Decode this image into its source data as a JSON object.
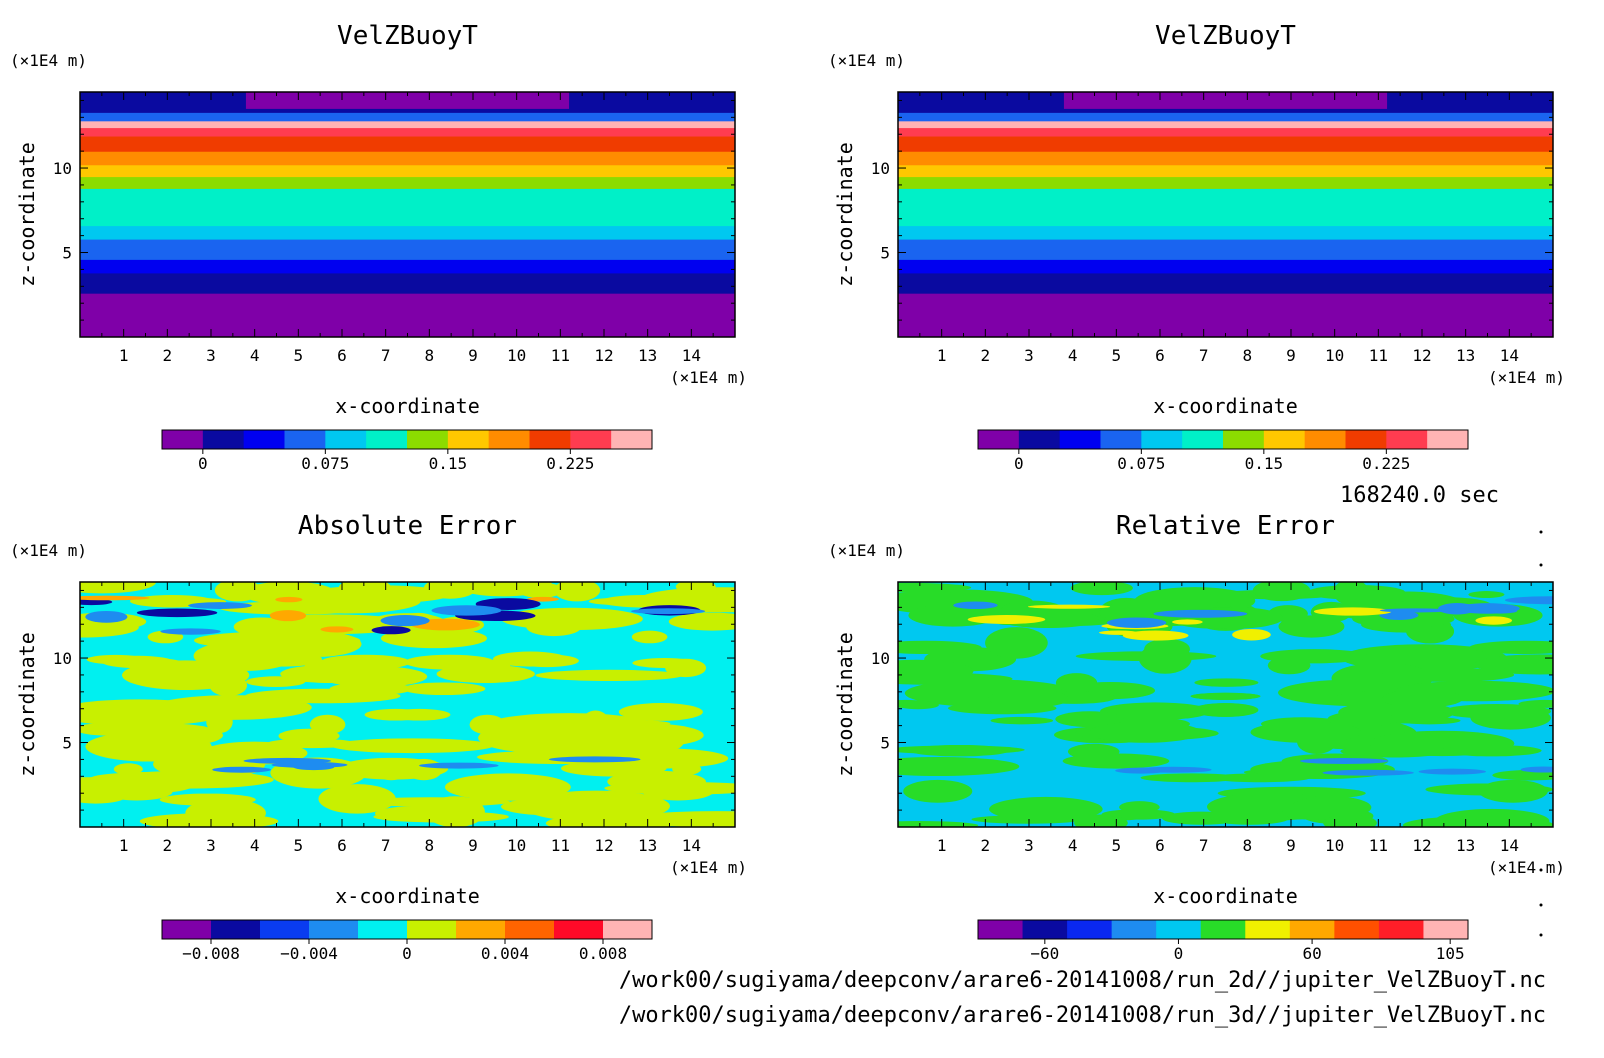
{
  "timestamp": "168240.0 sec",
  "files": [
    "/work00/sugiyama/deepconv/arare6-20141008/run_2d//jupiter_VelZBuoyT.nc",
    "/work00/sugiyama/deepconv/arare6-20141008/run_3d//jupiter_VelZBuoyT.nc"
  ],
  "chart_data": [
    {
      "type": "heatmap",
      "title": "VelZBuoyT",
      "xlabel": "x-coordinate",
      "ylabel": "z-coordinate",
      "x_unit": "(×1E4 m)",
      "y_unit": "(×1E4 m)",
      "x_ticks": [
        1,
        2,
        3,
        4,
        5,
        6,
        7,
        8,
        9,
        10,
        11,
        12,
        13,
        14
      ],
      "y_ticks": [
        5,
        10
      ],
      "xlim": [
        0,
        15
      ],
      "ylim": [
        0,
        14.5
      ],
      "pattern": "horizontal-bands",
      "bands": [
        {
          "z": [
            0,
            2.6
          ],
          "level": 0
        },
        {
          "z": [
            2.6,
            3.8
          ],
          "level": 1
        },
        {
          "z": [
            3.8,
            4.6
          ],
          "level": 2
        },
        {
          "z": [
            4.6,
            5.8
          ],
          "level": 3
        },
        {
          "z": [
            5.8,
            6.6
          ],
          "level": 4
        },
        {
          "z": [
            6.6,
            8.8
          ],
          "level": 5
        },
        {
          "z": [
            8.8,
            9.5
          ],
          "level": 6
        },
        {
          "z": [
            9.5,
            10.2
          ],
          "level": 7
        },
        {
          "z": [
            10.2,
            11.0
          ],
          "level": 8
        },
        {
          "z": [
            11.0,
            11.9
          ],
          "level": 9
        },
        {
          "z": [
            11.9,
            12.4
          ],
          "level": 10
        },
        {
          "z": [
            12.4,
            12.8
          ],
          "level": 11
        },
        {
          "z": [
            12.8,
            13.3
          ],
          "level": 3
        },
        {
          "z": [
            13.3,
            14.5
          ],
          "level": 1
        }
      ],
      "colorbar": {
        "colors": [
          "#7f00a8",
          "#0a0aa0",
          "#0000f0",
          "#1a64f0",
          "#00c8f0",
          "#00f0c8",
          "#8cdc00",
          "#ffc800",
          "#ff8c00",
          "#f03c00",
          "#ff3c50",
          "#ffb4b4"
        ],
        "tick_labels": [
          "0",
          "0.075",
          "0.15",
          "0.225"
        ],
        "tick_at_boundary": [
          1,
          4,
          7,
          10
        ]
      }
    },
    {
      "type": "heatmap",
      "title": "VelZBuoyT",
      "xlabel": "x-coordinate",
      "ylabel": "z-coordinate",
      "x_unit": "(×1E4 m)",
      "y_unit": "(×1E4 m)",
      "x_ticks": [
        1,
        2,
        3,
        4,
        5,
        6,
        7,
        8,
        9,
        10,
        11,
        12,
        13,
        14
      ],
      "y_ticks": [
        5,
        10
      ],
      "xlim": [
        0,
        15
      ],
      "ylim": [
        0,
        14.5
      ],
      "pattern": "horizontal-bands",
      "bands": [
        {
          "z": [
            0,
            2.6
          ],
          "level": 0
        },
        {
          "z": [
            2.6,
            3.8
          ],
          "level": 1
        },
        {
          "z": [
            3.8,
            4.6
          ],
          "level": 2
        },
        {
          "z": [
            4.6,
            5.8
          ],
          "level": 3
        },
        {
          "z": [
            5.8,
            6.6
          ],
          "level": 4
        },
        {
          "z": [
            6.6,
            8.8
          ],
          "level": 5
        },
        {
          "z": [
            8.8,
            9.5
          ],
          "level": 6
        },
        {
          "z": [
            9.5,
            10.2
          ],
          "level": 7
        },
        {
          "z": [
            10.2,
            11.0
          ],
          "level": 8
        },
        {
          "z": [
            11.0,
            11.9
          ],
          "level": 9
        },
        {
          "z": [
            11.9,
            12.4
          ],
          "level": 10
        },
        {
          "z": [
            12.4,
            12.8
          ],
          "level": 11
        },
        {
          "z": [
            12.8,
            13.3
          ],
          "level": 3
        },
        {
          "z": [
            13.3,
            14.5
          ],
          "level": 1
        }
      ],
      "colorbar": {
        "colors": [
          "#7f00a8",
          "#0a0aa0",
          "#0000f0",
          "#1a64f0",
          "#00c8f0",
          "#00f0c8",
          "#8cdc00",
          "#ffc800",
          "#ff8c00",
          "#f03c00",
          "#ff3c50",
          "#ffb4b4"
        ],
        "tick_labels": [
          "0",
          "0.075",
          "0.15",
          "0.225"
        ],
        "tick_at_boundary": [
          1,
          4,
          7,
          10
        ]
      }
    },
    {
      "type": "heatmap",
      "title": "Absolute Error",
      "xlabel": "x-coordinate",
      "ylabel": "z-coordinate",
      "x_unit": "(×1E4 m)",
      "y_unit": "(×1E4 m)",
      "x_ticks": [
        1,
        2,
        3,
        4,
        5,
        6,
        7,
        8,
        9,
        10,
        11,
        12,
        13,
        14
      ],
      "y_ticks": [
        5,
        10
      ],
      "xlim": [
        0,
        15
      ],
      "ylim": [
        0,
        14.5
      ],
      "pattern": "noise",
      "base_levels": [
        4,
        5
      ],
      "accent_levels": [
        3,
        6,
        1
      ],
      "colorbar": {
        "colors": [
          "#7f00a8",
          "#0a0aa0",
          "#0a3cf0",
          "#1e8cf0",
          "#00f0f0",
          "#c8f000",
          "#ffa800",
          "#ff6400",
          "#ff0a28",
          "#ffb4b4"
        ],
        "tick_labels": [
          "−0.008",
          "−0.004",
          "0",
          "0.004",
          "0.008"
        ],
        "tick_at_boundary": [
          1,
          3,
          5,
          7,
          9
        ]
      }
    },
    {
      "type": "heatmap",
      "title": "Relative Error",
      "xlabel": "x-coordinate",
      "ylabel": "z-coordinate",
      "x_unit": "(×1E4 m)",
      "y_unit": "(×1E4 m)",
      "x_ticks": [
        1,
        2,
        3,
        4,
        5,
        6,
        7,
        8,
        9,
        10,
        11,
        12,
        13,
        14
      ],
      "y_ticks": [
        5,
        10
      ],
      "xlim": [
        0,
        15
      ],
      "ylim": [
        0,
        14.5
      ],
      "pattern": "noise",
      "base_levels": [
        4,
        5
      ],
      "accent_levels": [
        3,
        6
      ],
      "colorbar": {
        "colors": [
          "#7f00a8",
          "#0a0aa0",
          "#0a28f0",
          "#1e8cf0",
          "#00c8f0",
          "#28dc28",
          "#f0f000",
          "#ffa800",
          "#ff5000",
          "#ff1e28",
          "#ffb4b4"
        ],
        "tick_labels": [
          "−60",
          "0",
          "60",
          "105"
        ],
        "tick_at_boundary": [
          1.5,
          4.5,
          7.5,
          10.6
        ]
      }
    }
  ]
}
